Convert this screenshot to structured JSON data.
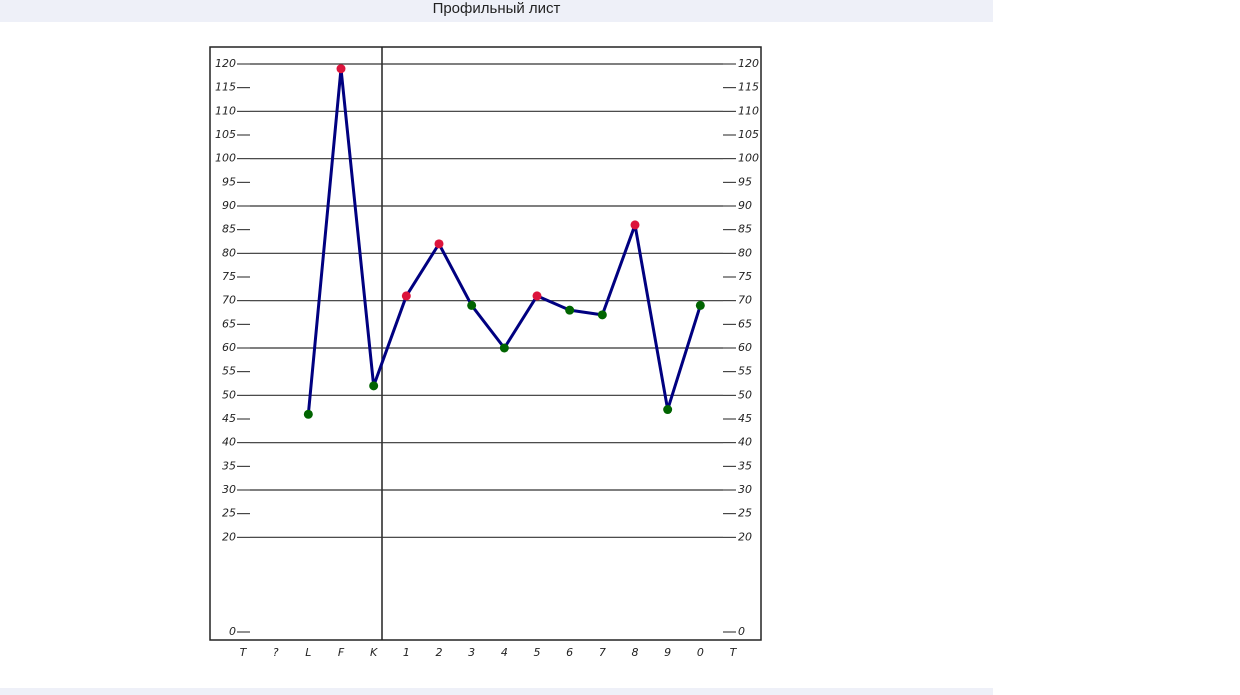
{
  "chart_data": {
    "type": "line",
    "title": "Профильный лист",
    "categories": [
      "T",
      "?",
      "L",
      "F",
      "K",
      "1",
      "2",
      "3",
      "4",
      "5",
      "6",
      "7",
      "8",
      "9",
      "0",
      "T"
    ],
    "series": [
      {
        "color": "#000080",
        "values": [
          null,
          null,
          46,
          119,
          52,
          71,
          82,
          69,
          60,
          71,
          68,
          67,
          86,
          47,
          69,
          null
        ],
        "marker_colors": [
          null,
          null,
          "#006400",
          "#dc143c",
          "#006400",
          "#dc143c",
          "#dc143c",
          "#006400",
          "#006400",
          "#dc143c",
          "#006400",
          "#006400",
          "#dc143c",
          "#006400",
          "#006400",
          null
        ]
      }
    ],
    "ylim": [
      0,
      120
    ],
    "yticks": [
      0,
      20,
      25,
      30,
      35,
      40,
      45,
      50,
      55,
      60,
      65,
      70,
      75,
      80,
      85,
      90,
      95,
      100,
      105,
      110,
      115,
      120
    ],
    "grid": true
  }
}
